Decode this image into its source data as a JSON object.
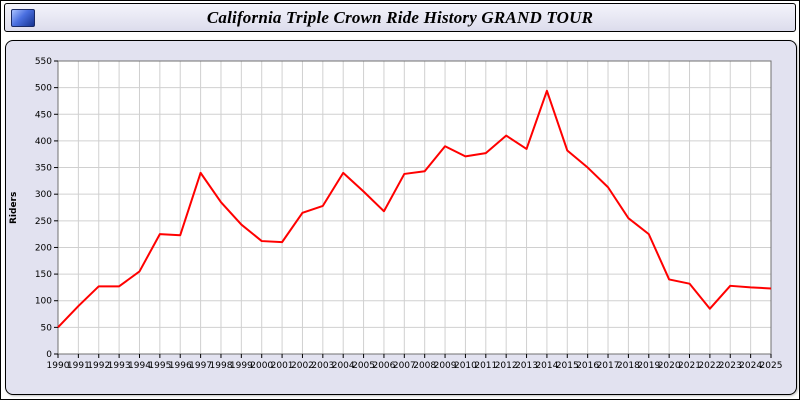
{
  "header": {
    "title": "California Triple Crown Ride History GRAND TOUR"
  },
  "chart_data": {
    "type": "line",
    "title": "California Triple Crown Ride History GRAND TOUR",
    "xlabel": "",
    "ylabel": "Riders",
    "ylim": [
      0,
      550
    ],
    "ytick_step": 50,
    "grid": true,
    "legend": "none",
    "line_color": "#ff0000",
    "grid_color": "#d0d0d0",
    "plot_bg": "#ffffff",
    "panel_bg": "#e2e2f0",
    "x": [
      1990,
      1991,
      1992,
      1993,
      1994,
      1995,
      1996,
      1997,
      1998,
      1999,
      2000,
      2001,
      2002,
      2003,
      2004,
      2005,
      2006,
      2007,
      2008,
      2009,
      2010,
      2011,
      2012,
      2013,
      2014,
      2015,
      2016,
      2017,
      2018,
      2019,
      2020,
      2021,
      2022,
      2023,
      2024,
      2025
    ],
    "values": [
      50,
      90,
      127,
      127,
      155,
      225,
      223,
      340,
      285,
      243,
      212,
      210,
      265,
      278,
      340,
      305,
      268,
      338,
      343,
      390,
      371,
      377,
      410,
      385,
      494,
      382,
      350,
      313,
      255,
      225,
      140,
      132,
      85,
      128,
      125,
      123
    ]
  }
}
